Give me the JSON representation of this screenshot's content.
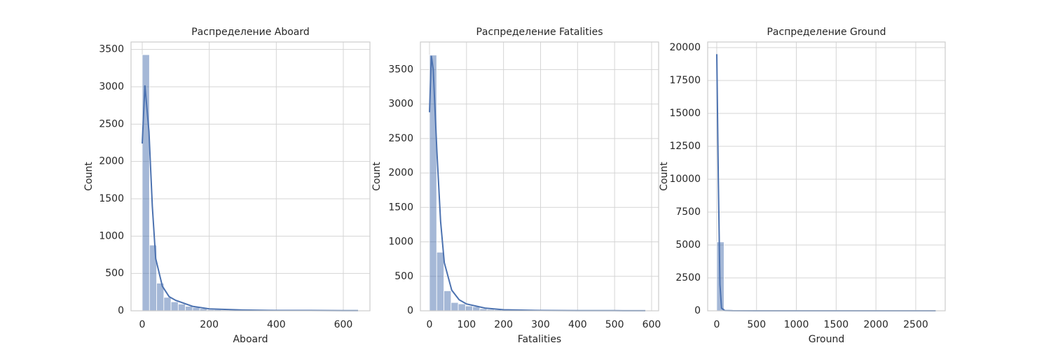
{
  "chart_data": [
    {
      "type": "histogram",
      "title": "Распределение Aboard",
      "x_label": "Aboard",
      "y_label": "Count",
      "bins": [
        0,
        21.5,
        42.9,
        64.4,
        85.9,
        107.3,
        128.8,
        150.3,
        171.7,
        193.2,
        214.7,
        236.1,
        257.6,
        279.1,
        300.5,
        322,
        343.5,
        364.9,
        386.4,
        407.9,
        429.3,
        450.8,
        472.3,
        493.7,
        515.2,
        536.7,
        558.1,
        579.6,
        601.1,
        622.5,
        644
      ],
      "values": [
        3430,
        880,
        370,
        180,
        120,
        90,
        60,
        45,
        30,
        15,
        15,
        10,
        10,
        8,
        5,
        5,
        5,
        3,
        3,
        3,
        2,
        2,
        2,
        5,
        5,
        3,
        2,
        1,
        1,
        2
      ],
      "kde": {
        "x": [
          0,
          8,
          20,
          30,
          40,
          60,
          80,
          100,
          150,
          200,
          300,
          400,
          500,
          600,
          644
        ],
        "values": [
          2240,
          3020,
          2400,
          1400,
          700,
          330,
          190,
          140,
          60,
          25,
          10,
          5,
          5,
          3,
          2
        ]
      },
      "color": "#4c72b0",
      "xlim": [
        -33.5,
        679.5
      ],
      "ylim": [
        0,
        3600
      ],
      "xticks": [
        0,
        200,
        400,
        600
      ],
      "yticks": [
        0,
        500,
        1000,
        1500,
        2000,
        2500,
        3000,
        3500
      ],
      "grid": true
    },
    {
      "type": "histogram",
      "title": "Распределение Fatalities",
      "x_label": "Fatalities",
      "y_label": "Count",
      "bins": [
        0,
        19.4,
        38.9,
        58.3,
        77.7,
        97.2,
        116.6,
        136,
        155.5,
        174.9,
        194.3,
        213.8,
        233.2,
        252.6,
        272.1,
        291.5,
        310.9,
        330.4,
        349.8,
        369.2,
        388.7,
        408.1,
        427.5,
        447,
        466.4,
        485.8,
        505.3,
        524.7,
        544.1,
        563.6,
        583
      ],
      "values": [
        3710,
        850,
        290,
        120,
        100,
        70,
        60,
        30,
        20,
        15,
        10,
        8,
        6,
        5,
        5,
        4,
        3,
        3,
        2,
        2,
        2,
        1,
        1,
        1,
        1,
        1,
        1,
        1,
        1,
        1
      ],
      "kde": {
        "x": [
          0,
          5,
          10,
          20,
          30,
          40,
          60,
          80,
          100,
          150,
          200,
          300,
          400,
          500,
          583
        ],
        "values": [
          2880,
          3700,
          3500,
          2300,
          1300,
          700,
          300,
          160,
          100,
          40,
          15,
          5,
          3,
          2,
          1
        ]
      },
      "color": "#4c72b0",
      "xlim": [
        -24.6,
        619
      ],
      "ylim": [
        0,
        3900
      ],
      "xticks": [
        0,
        100,
        200,
        300,
        400,
        500,
        600
      ],
      "yticks": [
        0,
        500,
        1000,
        1500,
        2000,
        2500,
        3000,
        3500
      ],
      "grid": true
    },
    {
      "type": "histogram",
      "title": "Распределение Ground",
      "x_label": "Ground",
      "y_label": "Count",
      "bins": [
        0,
        91.7,
        183.3,
        275,
        366.7,
        458.3,
        550,
        641.7,
        733.3,
        825,
        916.7,
        1008.3,
        1100,
        1191.7,
        1283.3,
        1375,
        1466.7,
        1558.3,
        1650,
        1741.7,
        1833.3,
        1925,
        2016.7,
        2108.3,
        2200,
        2291.7,
        2383.3,
        2475,
        2566.7,
        2658.3,
        2750
      ],
      "values": [
        5230,
        4,
        2,
        1,
        1,
        1,
        0,
        1,
        0,
        0,
        0,
        0,
        0,
        0,
        0,
        0,
        0,
        0,
        0,
        0,
        0,
        0,
        0,
        0,
        0,
        0,
        0,
        0,
        0,
        1
      ],
      "kde": {
        "x": [
          0,
          20,
          40,
          60,
          100,
          200,
          500,
          1000,
          2000,
          2750
        ],
        "values": [
          19500,
          10000,
          2000,
          200,
          20,
          5,
          2,
          1,
          1,
          0
        ]
      },
      "color": "#4c72b0",
      "xlim": [
        -114,
        2870
      ],
      "ylim": [
        0,
        20425
      ],
      "xticks": [
        0,
        500,
        1000,
        1500,
        2000,
        2500
      ],
      "yticks": [
        0,
        2500,
        5000,
        7500,
        10000,
        12500,
        15000,
        17500,
        20000
      ],
      "grid": true
    }
  ]
}
